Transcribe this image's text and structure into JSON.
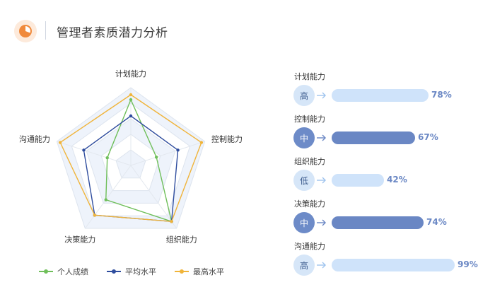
{
  "header": {
    "title": "管理者素质潜力分析",
    "logo_icon": "pie-chart-icon"
  },
  "chart_data": [
    {
      "type": "radar",
      "categories": [
        "计划能力",
        "控制能力",
        "组织能力",
        "决策能力",
        "沟通能力"
      ],
      "scale": [
        0,
        100
      ],
      "series": [
        {
          "name": "个人成绩",
          "color": "#6fbf5a",
          "values": [
            93,
            38,
            98,
            60,
            35
          ]
        },
        {
          "name": "平均水平",
          "color": "#2f4d9e",
          "values": [
            70,
            70,
            98,
            87,
            70
          ]
        },
        {
          "name": "最高水平",
          "color": "#f0b43a",
          "values": [
            100,
            105,
            98,
            87,
            105
          ]
        }
      ],
      "legend_position": "bottom-left"
    },
    {
      "type": "bar",
      "orientation": "horizontal",
      "categories": [
        "计划能力",
        "控制能力",
        "组织能力",
        "决策能力",
        "沟通能力"
      ],
      "values": [
        78,
        67,
        42,
        74,
        99
      ],
      "value_labels": [
        "78%",
        "67%",
        "42%",
        "74%",
        "99%"
      ],
      "levels": [
        "高",
        "中",
        "低",
        "中",
        "高"
      ],
      "xlim": [
        0,
        100
      ]
    }
  ],
  "colors": {
    "light_bar": "#cfe3fa",
    "dark_bar": "#6a87c4",
    "light_circle": "#d6e6f8",
    "dark_circle": "#6d8bc8"
  }
}
